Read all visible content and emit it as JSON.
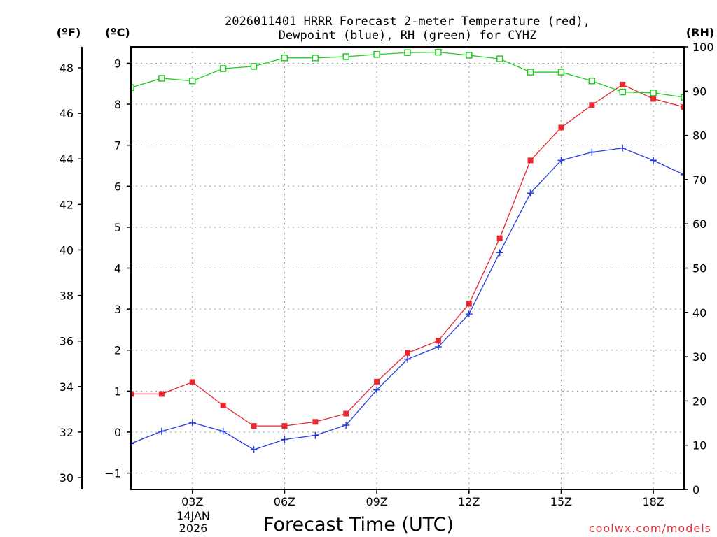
{
  "chart_data": {
    "type": "line",
    "title_line1": "2026011401 HRRR Forecast 2-meter Temperature (red),",
    "title_line2": "Dewpoint (blue), RH (green) for CYHZ",
    "left_unit_f": "(ºF)",
    "left_unit_c": "(ºC)",
    "right_unit": "(RH)",
    "xlabel": "Forecast Time (UTC)",
    "credit": "coolwx.com/models",
    "date_line1": "14JAN",
    "date_line2": "2026",
    "x_hours": [
      1,
      2,
      3,
      4,
      5,
      6,
      7,
      8,
      9,
      10,
      11,
      12,
      13,
      14,
      15,
      16,
      17,
      18,
      19
    ],
    "x_ticks": [
      {
        "hour": 3,
        "label": "03Z"
      },
      {
        "hour": 6,
        "label": "06Z"
      },
      {
        "hour": 9,
        "label": "09Z"
      },
      {
        "hour": 12,
        "label": "12Z"
      },
      {
        "hour": 15,
        "label": "15Z"
      },
      {
        "hour": 18,
        "label": "18Z"
      }
    ],
    "xlim": [
      1,
      19
    ],
    "celsius_axis": {
      "ylim": [
        -1.4,
        9.4
      ],
      "ticks": [
        -1,
        0,
        1,
        2,
        3,
        4,
        5,
        6,
        7,
        8,
        9
      ],
      "labels": [
        "−1",
        "0",
        "1",
        "2",
        "3",
        "4",
        "5",
        "6",
        "7",
        "8",
        "9"
      ]
    },
    "fahrenheit_axis": {
      "ticks": [
        30,
        32,
        34,
        36,
        38,
        40,
        42,
        44,
        46,
        48
      ],
      "labels": [
        "30",
        "32",
        "34",
        "36",
        "38",
        "40",
        "42",
        "44",
        "46",
        "48"
      ]
    },
    "rh_axis": {
      "ylim": [
        0,
        100
      ],
      "ticks": [
        0,
        10,
        20,
        30,
        40,
        50,
        60,
        70,
        80,
        90,
        100
      ],
      "labels": [
        "0",
        "10",
        "20",
        "30",
        "40",
        "50",
        "60",
        "70",
        "80",
        "90",
        "100"
      ]
    },
    "series": [
      {
        "name": "Temperature",
        "color": "#e8282e",
        "marker": "filled-square",
        "axis": "celsius",
        "values": [
          0.93,
          0.93,
          1.22,
          0.65,
          0.15,
          0.15,
          0.25,
          0.45,
          1.23,
          1.93,
          2.23,
          3.13,
          4.73,
          6.63,
          7.43,
          7.98,
          8.48,
          8.13,
          7.93
        ]
      },
      {
        "name": "Dewpoint",
        "color": "#2a3ee0",
        "marker": "plus",
        "axis": "celsius",
        "values": [
          -0.28,
          0.02,
          0.23,
          0.02,
          -0.43,
          -0.18,
          -0.08,
          0.17,
          1.03,
          1.78,
          2.08,
          2.88,
          4.38,
          5.83,
          6.63,
          6.83,
          6.93,
          6.63,
          6.28
        ]
      },
      {
        "name": "RH",
        "color": "#22cc22",
        "marker": "open-square",
        "axis": "rh",
        "values": [
          90.8,
          92.9,
          92.3,
          95.1,
          95.6,
          97.5,
          97.5,
          97.8,
          98.3,
          98.7,
          98.8,
          98.1,
          97.3,
          94.3,
          94.3,
          92.3,
          89.8,
          89.6,
          88.6
        ]
      }
    ]
  }
}
